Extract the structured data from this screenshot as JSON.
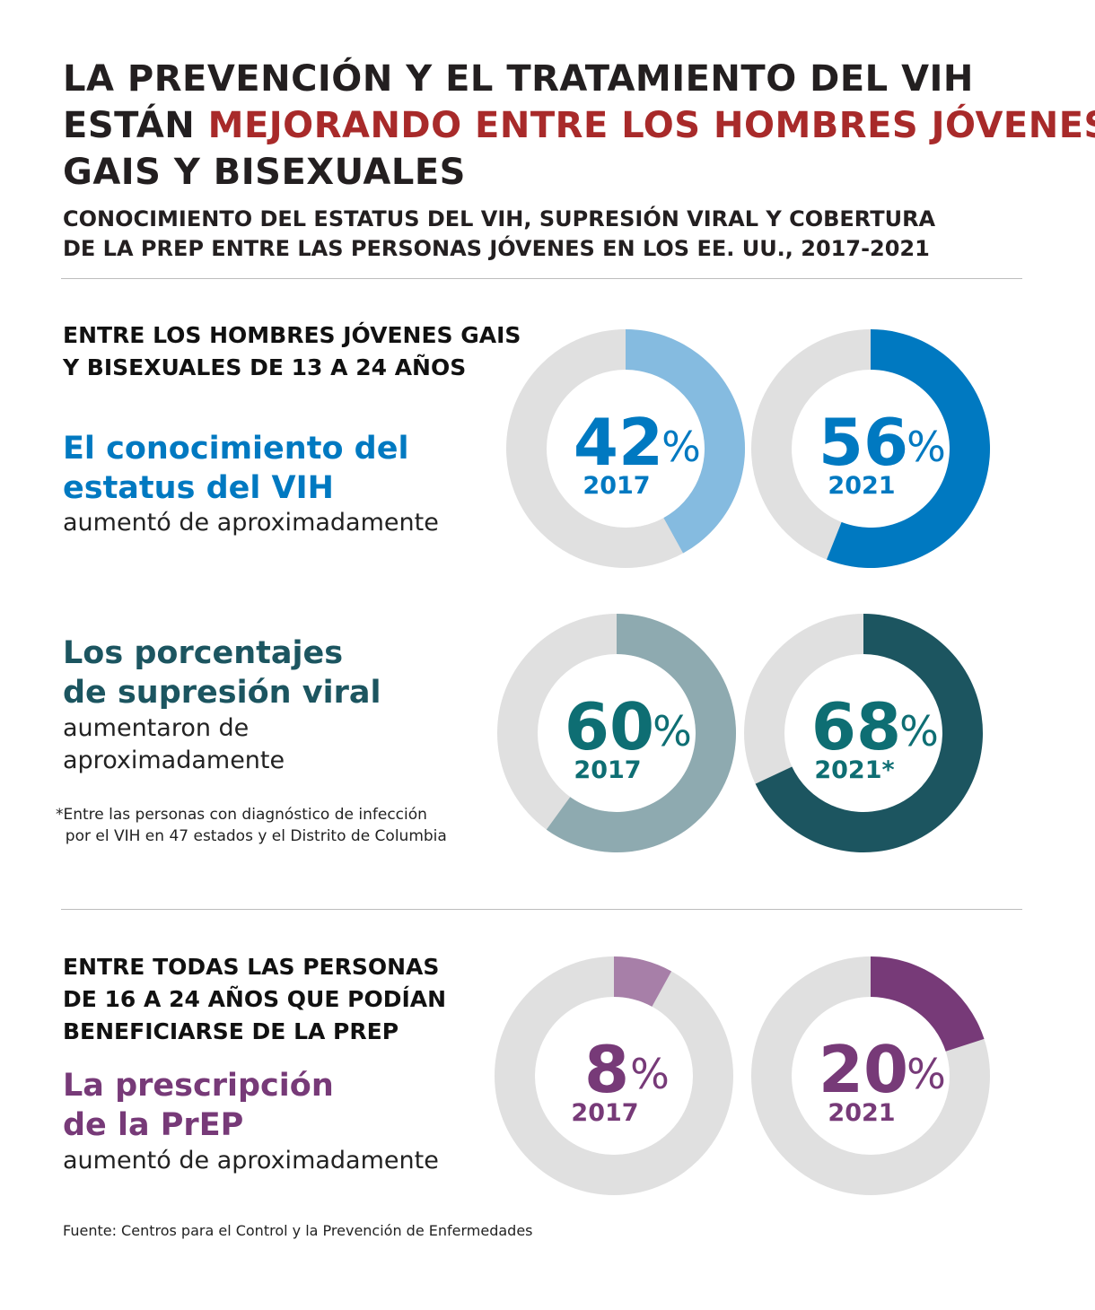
{
  "title": {
    "line1": "LA PREVENCIÓN Y EL TRATAMIENTO DEL VIH",
    "line2_prefix": "ESTÁN ",
    "line2_highlight": "MEJORANDO ENTRE LOS HOMBRES JÓVENES",
    "line3": "GAIS Y BISEXUALES"
  },
  "subtitle": {
    "line1": "CONOCIMIENTO DEL ESTATUS DEL VIH, SUPRESIÓN VIRAL Y COBERTURA",
    "line2": "DE LA PREP ENTRE LAS PERSONAS JÓVENES EN LOS EE. UU., 2017-2021"
  },
  "section1": {
    "head1": "ENTRE LOS HOMBRES JÓVENES GAIS",
    "head2": "Y BISEXUALES DE 13 A 24 AÑOS"
  },
  "stat1": {
    "line1": "El conocimiento del",
    "line2": "estatus del VIH",
    "sub": "aumentó de aproximadamente"
  },
  "stat2": {
    "line1": "Los porcentajes",
    "line2": "de supresión viral",
    "sub1": "aumentaron de",
    "sub2": "aproximadamente",
    "note": "*Entre las personas con diagnóstico de infección\n  por el VIH en 47 estados y el Distrito de Columbia"
  },
  "section2": {
    "head1": "ENTRE TODAS LAS PERSONAS",
    "head2": "DE 16 A 24 AÑOS QUE PODÍAN",
    "head3": "BENEFICIARSE DE LA PREP"
  },
  "stat3": {
    "line1": "La prescripción",
    "line2": "de la PrEP",
    "sub": "aumentó de aproximadamente"
  },
  "source": "Fuente: Centros para el Control y la Prevención de Enfermedades",
  "colors": {
    "title_red": "#a82a2a",
    "track": "#e0e0e0"
  },
  "chart_data": [
    {
      "type": "pie",
      "variant": "donut",
      "metric": "El conocimiento del estatus del VIH",
      "color_text": "#0079c1",
      "items": [
        {
          "label": "2017",
          "value": 42,
          "display": "42",
          "color": "#85bbe0"
        },
        {
          "label": "2021",
          "value": 56,
          "display": "56",
          "color": "#0079c1"
        }
      ]
    },
    {
      "type": "pie",
      "variant": "donut",
      "metric": "Los porcentajes de supresión viral",
      "color_text": "#0e6e73",
      "items": [
        {
          "label": "2017",
          "value": 60,
          "display": "60",
          "color": "#8eaab0"
        },
        {
          "label": "2021*",
          "value": 68,
          "display": "68",
          "color": "#1c5560"
        }
      ]
    },
    {
      "type": "pie",
      "variant": "donut",
      "metric": "La prescripción de la PrEP",
      "color_text": "#773a78",
      "items": [
        {
          "label": "2017",
          "value": 8,
          "display": "8",
          "color": "#a77fa8"
        },
        {
          "label": "2021",
          "value": 20,
          "display": "20",
          "color": "#773a78"
        }
      ]
    }
  ]
}
